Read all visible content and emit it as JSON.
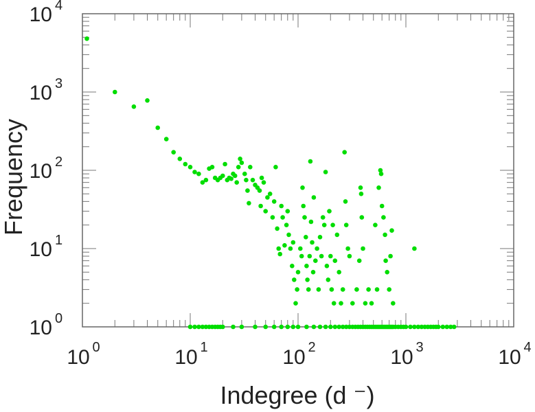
{
  "chart_data": {
    "type": "scatter",
    "xlabel": "Indegree (d  ⁻)",
    "ylabel": "Frequency",
    "x_scale": "log",
    "y_scale": "log",
    "xlim": [
      1,
      10000
    ],
    "ylim": [
      1,
      10000
    ],
    "grid": false,
    "point_color": "#00dd00",
    "x_ticks": [
      {
        "base": "10",
        "exp": "0"
      },
      {
        "base": "10",
        "exp": "1"
      },
      {
        "base": "10",
        "exp": "2"
      },
      {
        "base": "10",
        "exp": "3"
      },
      {
        "base": "10",
        "exp": "4"
      }
    ],
    "y_ticks": [
      {
        "base": "10",
        "exp": "0"
      },
      {
        "base": "10",
        "exp": "1"
      },
      {
        "base": "10",
        "exp": "2"
      },
      {
        "base": "10",
        "exp": "3"
      },
      {
        "base": "10",
        "exp": "4"
      }
    ],
    "points": [
      [
        1.1,
        4800
      ],
      [
        2.0,
        1000
      ],
      [
        3.0,
        650
      ],
      [
        4.0,
        780
      ],
      [
        5.0,
        350
      ],
      [
        6.0,
        250
      ],
      [
        7.0,
        170
      ],
      [
        8.0,
        140
      ],
      [
        9.0,
        120
      ],
      [
        10.0,
        110
      ],
      [
        11.0,
        95
      ],
      [
        12.0,
        90
      ],
      [
        13.0,
        70
      ],
      [
        14.0,
        75
      ],
      [
        15.0,
        105
      ],
      [
        16.0,
        110
      ],
      [
        17.0,
        80
      ],
      [
        18.0,
        75
      ],
      [
        19.0,
        80
      ],
      [
        20.0,
        85
      ],
      [
        21.0,
        120
      ],
      [
        22.0,
        75
      ],
      [
        23.0,
        80
      ],
      [
        24.0,
        78
      ],
      [
        25.0,
        90
      ],
      [
        26.0,
        85
      ],
      [
        27.0,
        70
      ],
      [
        28.0,
        110
      ],
      [
        29.0,
        140
      ],
      [
        30.0,
        125
      ],
      [
        32.0,
        90
      ],
      [
        33.0,
        75
      ],
      [
        34.0,
        55
      ],
      [
        35.0,
        38
      ],
      [
        36.0,
        110
      ],
      [
        38.0,
        75
      ],
      [
        40.0,
        65
      ],
      [
        42.0,
        60
      ],
      [
        44.0,
        55
      ],
      [
        45.0,
        35
      ],
      [
        46.0,
        80
      ],
      [
        48.0,
        70
      ],
      [
        50.0,
        30
      ],
      [
        52.0,
        45
      ],
      [
        55.0,
        50
      ],
      [
        58.0,
        25
      ],
      [
        60.0,
        40
      ],
      [
        62.0,
        110
      ],
      [
        64.0,
        18
      ],
      [
        66.0,
        10
      ],
      [
        68.0,
        8.5
      ],
      [
        70.0,
        35
      ],
      [
        72.0,
        25
      ],
      [
        75.0,
        11
      ],
      [
        78.0,
        20
      ],
      [
        80.0,
        30
      ],
      [
        82.0,
        15
      ],
      [
        85.0,
        10
      ],
      [
        88.0,
        6
      ],
      [
        90.0,
        12
      ],
      [
        92.0,
        4
      ],
      [
        95.0,
        2
      ],
      [
        98.0,
        3
      ],
      [
        100.0,
        5
      ],
      [
        105.0,
        10
      ],
      [
        108.0,
        8
      ],
      [
        110.0,
        60
      ],
      [
        112.0,
        35
      ],
      [
        115.0,
        25
      ],
      [
        118.0,
        14
      ],
      [
        120.0,
        6
      ],
      [
        122.0,
        4
      ],
      [
        125.0,
        3
      ],
      [
        128.0,
        8
      ],
      [
        130.0,
        130
      ],
      [
        132.0,
        22
      ],
      [
        135.0,
        12
      ],
      [
        138.0,
        5
      ],
      [
        140.0,
        45
      ],
      [
        145.0,
        7
      ],
      [
        150.0,
        10
      ],
      [
        155.0,
        3
      ],
      [
        160.0,
        14
      ],
      [
        165.0,
        8
      ],
      [
        170.0,
        25
      ],
      [
        175.0,
        20
      ],
      [
        180.0,
        95
      ],
      [
        185.0,
        6
      ],
      [
        190.0,
        4
      ],
      [
        195.0,
        30
      ],
      [
        200.0,
        8
      ],
      [
        205.0,
        3
      ],
      [
        210.0,
        20
      ],
      [
        215.0,
        2
      ],
      [
        220.0,
        7
      ],
      [
        230.0,
        15
      ],
      [
        240.0,
        5
      ],
      [
        250.0,
        2
      ],
      [
        260.0,
        3
      ],
      [
        270.0,
        170
      ],
      [
        275.0,
        40
      ],
      [
        280.0,
        20
      ],
      [
        290.0,
        10
      ],
      [
        300.0,
        8
      ],
      [
        320.0,
        2
      ],
      [
        350.0,
        3
      ],
      [
        370.0,
        7
      ],
      [
        380.0,
        60
      ],
      [
        385.0,
        50
      ],
      [
        390.0,
        25
      ],
      [
        400.0,
        10
      ],
      [
        420.0,
        2
      ],
      [
        450.0,
        3
      ],
      [
        480.0,
        2
      ],
      [
        520.0,
        20
      ],
      [
        540.0,
        3
      ],
      [
        560.0,
        60
      ],
      [
        580.0,
        100
      ],
      [
        590.0,
        90
      ],
      [
        600.0,
        35
      ],
      [
        620.0,
        25
      ],
      [
        640.0,
        15
      ],
      [
        650.0,
        7
      ],
      [
        670.0,
        5
      ],
      [
        700.0,
        3
      ],
      [
        720.0,
        8
      ],
      [
        740.0,
        17
      ],
      [
        760.0,
        2
      ],
      [
        1200.0,
        10
      ],
      [
        10.0,
        1
      ],
      [
        11.0,
        1
      ],
      [
        12.0,
        1
      ],
      [
        13.0,
        1
      ],
      [
        14.0,
        1
      ],
      [
        15.0,
        1
      ],
      [
        16.0,
        1
      ],
      [
        17.0,
        1
      ],
      [
        18.0,
        1
      ],
      [
        19.0,
        1
      ],
      [
        20.0,
        1
      ],
      [
        25.0,
        1
      ],
      [
        30.0,
        1
      ],
      [
        40.0,
        1
      ],
      [
        50.0,
        1
      ],
      [
        60.0,
        1
      ],
      [
        70.0,
        1
      ],
      [
        80.0,
        1
      ],
      [
        90.0,
        1
      ],
      [
        100.0,
        1
      ],
      [
        120.0,
        1
      ],
      [
        140.0,
        1
      ],
      [
        160.0,
        1
      ],
      [
        180.0,
        1
      ],
      [
        200.0,
        1
      ],
      [
        220.0,
        1
      ],
      [
        240.0,
        1
      ],
      [
        260.0,
        1
      ],
      [
        280.0,
        1
      ],
      [
        300.0,
        1
      ],
      [
        320.0,
        1
      ],
      [
        340.0,
        1
      ],
      [
        360.0,
        1
      ],
      [
        380.0,
        1
      ],
      [
        400.0,
        1
      ],
      [
        420.0,
        1
      ],
      [
        440.0,
        1
      ],
      [
        460.0,
        1
      ],
      [
        480.0,
        1
      ],
      [
        500.0,
        1
      ],
      [
        520.0,
        1
      ],
      [
        540.0,
        1
      ],
      [
        560.0,
        1
      ],
      [
        580.0,
        1
      ],
      [
        600.0,
        1
      ],
      [
        620.0,
        1
      ],
      [
        640.0,
        1
      ],
      [
        660.0,
        1
      ],
      [
        680.0,
        1
      ],
      [
        700.0,
        1
      ],
      [
        720.0,
        1
      ],
      [
        740.0,
        1
      ],
      [
        760.0,
        1
      ],
      [
        800.0,
        1
      ],
      [
        850.0,
        1
      ],
      [
        900.0,
        1
      ],
      [
        950.0,
        1
      ],
      [
        1000.0,
        1
      ],
      [
        1100.0,
        1
      ],
      [
        1200.0,
        1
      ],
      [
        1300.0,
        1
      ],
      [
        1400.0,
        1
      ],
      [
        1500.0,
        1
      ],
      [
        1600.0,
        1
      ],
      [
        1700.0,
        1
      ],
      [
        1800.0,
        1
      ],
      [
        1900.0,
        1
      ],
      [
        2000.0,
        1
      ],
      [
        2200.0,
        1
      ],
      [
        2400.0,
        1
      ],
      [
        2600.0,
        1
      ],
      [
        2800.0,
        1
      ]
    ]
  }
}
